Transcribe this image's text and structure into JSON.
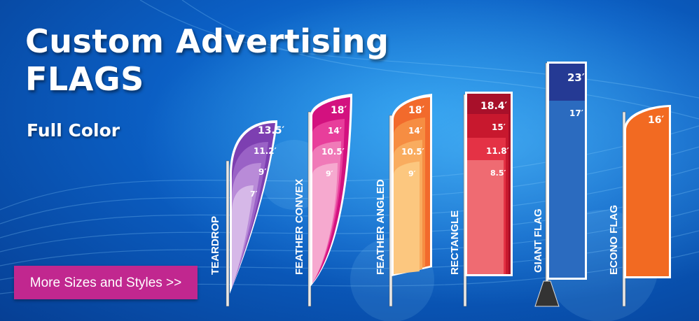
{
  "banner": {
    "title_line1": "Custom Advertising",
    "title_line2": "FLAGS",
    "subtitle": "Full Color",
    "cta_label": "More Sizes and Styles >>"
  },
  "flags": [
    {
      "name": "TEARDROP",
      "sizes": [
        "13.5′",
        "11.2′",
        "9′",
        "7′"
      ],
      "colors": [
        "#7d3fb1",
        "#9a62c6",
        "#b98bd8",
        "#d6b8e8"
      ]
    },
    {
      "name": "FEATHER CONVEX",
      "sizes": [
        "18′",
        "14′",
        "10.5′",
        "9′"
      ],
      "colors": [
        "#d3117f",
        "#e83e9b",
        "#f07ab8",
        "#f6a9cf"
      ]
    },
    {
      "name": "FEATHER ANGLED",
      "sizes": [
        "18′",
        "14′",
        "10.5′",
        "9′"
      ],
      "colors": [
        "#f26a2c",
        "#f68d42",
        "#f9ac5f",
        "#fcc77f"
      ]
    },
    {
      "name": "RECTANGLE",
      "sizes": [
        "18.4′",
        "15′",
        "11.8′",
        "8.5′"
      ],
      "colors": [
        "#a8102a",
        "#c8182e",
        "#e43245",
        "#ef6b72"
      ]
    },
    {
      "name": "GIANT FLAG",
      "sizes": [
        "23′",
        "17′"
      ],
      "colors": [
        "#253a94",
        "#2b6bbf"
      ]
    },
    {
      "name": "ECONO FLAG",
      "sizes": [
        "16′"
      ],
      "colors": [
        "#f26a22"
      ]
    }
  ]
}
